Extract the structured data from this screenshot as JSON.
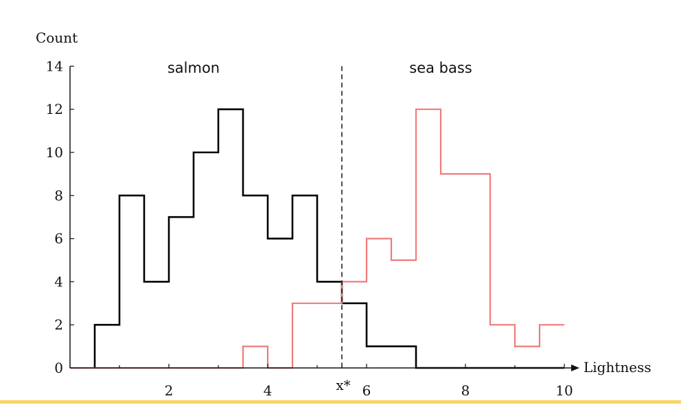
{
  "chart_data": {
    "type": "histogram",
    "xlabel": "Lightness",
    "ylabel": "Count",
    "xlim": [
      0,
      10
    ],
    "ylim": [
      0,
      14
    ],
    "xticks": [
      2,
      4,
      6,
      8,
      10
    ],
    "yticks": [
      0,
      2,
      4,
      6,
      8,
      10,
      12,
      14
    ],
    "bin_edges": [
      0.5,
      1.0,
      1.5,
      2.0,
      2.5,
      3.0,
      3.5,
      4.0,
      4.5,
      5.0,
      5.5,
      6.0,
      6.5,
      7.0,
      7.5,
      8.0,
      8.5,
      9.0,
      9.5,
      10.0
    ],
    "series": [
      {
        "name": "salmon",
        "color": "#000000",
        "counts": [
          2,
          8,
          4,
          7,
          10,
          12,
          8,
          6,
          8,
          4,
          3,
          1,
          1,
          0,
          0,
          0,
          0,
          0,
          0
        ]
      },
      {
        "name": "sea bass",
        "color": "#ee7a7a",
        "counts": [
          0,
          0,
          0,
          0,
          0,
          0,
          1,
          0,
          3,
          3,
          4,
          6,
          5,
          12,
          9,
          9,
          2,
          1,
          2
        ]
      }
    ],
    "threshold": {
      "label": "x*",
      "x": 5.5,
      "style": "dashed"
    }
  }
}
